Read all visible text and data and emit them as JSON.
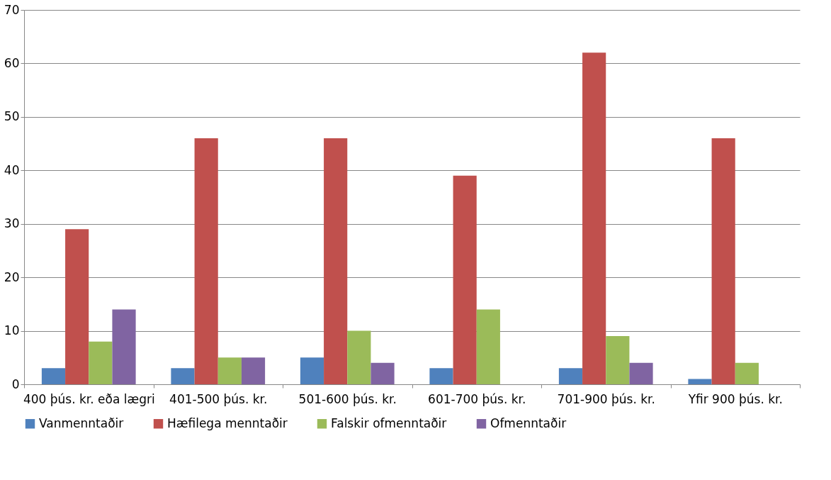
{
  "chart_data": {
    "type": "bar",
    "categories": [
      "400 þús. kr. eða lægri",
      "401-500 þús. kr.",
      "501-600 þús. kr.",
      "601-700 þús. kr.",
      "701-900 þús. kr.",
      "Yfir 900 þús. kr."
    ],
    "series": [
      {
        "name": "Vanmenntaðir",
        "color": "#4f81bd",
        "values": [
          3,
          3,
          5,
          3,
          3,
          1
        ]
      },
      {
        "name": "Hæfilega menntaðir",
        "color": "#c0504d",
        "values": [
          29,
          46,
          46,
          39,
          62,
          46
        ]
      },
      {
        "name": "Falskir ofmenntaðir",
        "color": "#9bbb59",
        "values": [
          8,
          5,
          10,
          14,
          9,
          4
        ]
      },
      {
        "name": "Ofmenntaðir",
        "color": "#8064a2",
        "values": [
          14,
          5,
          4,
          null,
          4,
          null
        ]
      }
    ],
    "ylim": [
      0,
      70
    ],
    "yticks": [
      0,
      10,
      20,
      30,
      40,
      50,
      60,
      70
    ],
    "grid": "y",
    "legend": "bottom"
  }
}
